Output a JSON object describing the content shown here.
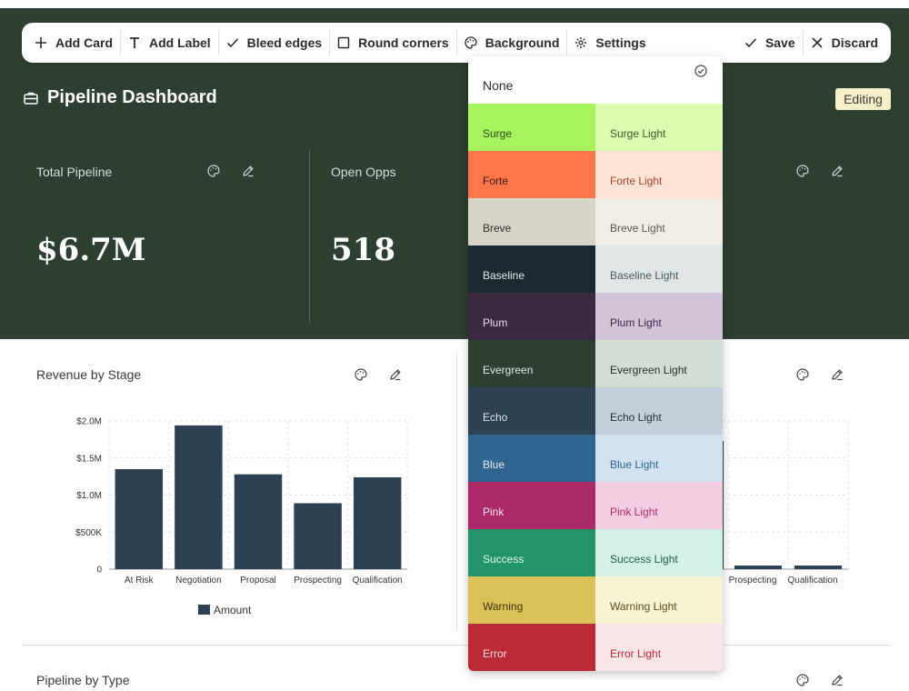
{
  "toolbar": {
    "add_card": "Add Card",
    "add_label": "Add Label",
    "bleed_edges": "Bleed edges",
    "round_corners": "Round corners",
    "background": "Background",
    "settings": "Settings",
    "save": "Save",
    "discard": "Discard"
  },
  "header": {
    "title": "Pipeline Dashboard",
    "badge": "Editing"
  },
  "kpis": [
    {
      "label": "Total Pipeline",
      "value": "$6.7M"
    },
    {
      "label": "Open Opps",
      "value": "518"
    }
  ],
  "cards": {
    "revenue_title": "Revenue by Stage",
    "pipeline_type_title": "Pipeline by Type"
  },
  "background_menu": {
    "none_label": "None",
    "swatches": [
      {
        "name": "Surge",
        "color": "#a6f55f",
        "text_color": "#2e4a1a"
      },
      {
        "name": "Surge Light",
        "color": "#dcfdb0",
        "text_color": "#3d5a25"
      },
      {
        "name": "Forte",
        "color": "#fd774a",
        "text_color": "#3a1a0c"
      },
      {
        "name": "Forte Light",
        "color": "#fde2d6",
        "text_color": "#a5452a"
      },
      {
        "name": "Breve",
        "color": "#d7d3c6",
        "text_color": "#2e2e2a"
      },
      {
        "name": "Breve Light",
        "color": "#efede4",
        "text_color": "#5a5850"
      },
      {
        "name": "Baseline",
        "color": "#1b2a30",
        "text_color": "#e3eaec"
      },
      {
        "name": "Baseline Light",
        "color": "#e0e6e6",
        "text_color": "#4a5a5e"
      },
      {
        "name": "Plum",
        "color": "#3b2841",
        "text_color": "#eadff0"
      },
      {
        "name": "Plum Light",
        "color": "#d3c3d8",
        "text_color": "#3b2841"
      },
      {
        "name": "Evergreen",
        "color": "#2d3f31",
        "text_color": "#e3ebe4"
      },
      {
        "name": "Evergreen Light",
        "color": "#d4ddd3",
        "text_color": "#1f2d22"
      },
      {
        "name": "Echo",
        "color": "#2e4054",
        "text_color": "#e1e8ef"
      },
      {
        "name": "Echo Light",
        "color": "#c2d0db",
        "text_color": "#1f2d3a"
      },
      {
        "name": "Blue",
        "color": "#2f6590",
        "text_color": "#e4eef6"
      },
      {
        "name": "Blue Light",
        "color": "#d2e2f0",
        "text_color": "#2f6590"
      },
      {
        "name": "Pink",
        "color": "#ad2a6a",
        "text_color": "#fbe3ef"
      },
      {
        "name": "Pink Light",
        "color": "#f3cfe1",
        "text_color": "#ad2a6a"
      },
      {
        "name": "Success",
        "color": "#23936a",
        "text_color": "#e1f5ec"
      },
      {
        "name": "Success Light",
        "color": "#d3f2e5",
        "text_color": "#1d5e45"
      },
      {
        "name": "Warning",
        "color": "#dcc256",
        "text_color": "#3a3210"
      },
      {
        "name": "Warning Light",
        "color": "#f8f3d2",
        "text_color": "#5a4f1c"
      },
      {
        "name": "Error",
        "color": "#bb2a35",
        "text_color": "#fbe2e4"
      },
      {
        "name": "Error Light",
        "color": "#f9e4e6",
        "text_color": "#bb2a35"
      }
    ]
  },
  "colors": {
    "header_bg": "#2d3f31",
    "bar": "#2e4054"
  },
  "chart_data": [
    {
      "type": "bar",
      "title": "Revenue by Stage",
      "categories": [
        "At Risk",
        "Negotiation",
        "Proposal",
        "Prospecting",
        "Qualification"
      ],
      "series": [
        {
          "name": "Amount",
          "values": [
            1350000,
            1940000,
            1280000,
            890000,
            1240000
          ]
        }
      ],
      "y_ticks": [
        "0",
        "$500K",
        "$1.0M",
        "$1.5M",
        "$2.0M"
      ],
      "ylim": [
        0,
        2000000
      ],
      "grid": true,
      "legend": "bottom"
    },
    {
      "type": "bar",
      "title": "",
      "categories": [
        "Prospecting",
        "Qualification"
      ],
      "series": [
        {
          "values": [
            0.02,
            0.02
          ]
        }
      ],
      "grid": true,
      "legend": "none"
    }
  ]
}
